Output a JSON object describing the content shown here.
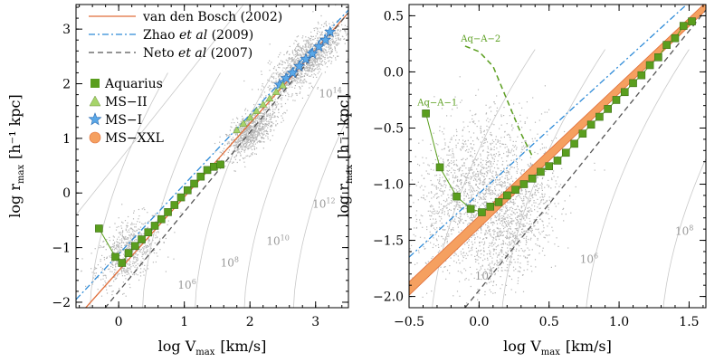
{
  "chart_data": [
    {
      "type": "line",
      "xlabel": "log V",
      "xlabel_sub": "max",
      "xlabel_unit": "[km/s]",
      "ylabel": "log r",
      "ylabel_sub": "max",
      "ylabel_unit": "[h⁻¹ kpc]",
      "xlim": [
        -0.65,
        3.5
      ],
      "ylim": [
        -2.1,
        3.45
      ],
      "xticks": [
        0,
        1,
        2,
        3
      ],
      "xtick_labels": [
        "0",
        "1",
        "2",
        "3"
      ],
      "yticks": [
        -2,
        -1,
        0,
        1,
        2,
        3
      ],
      "ytick_labels": [
        "−2",
        "−1",
        "0",
        "1",
        "2",
        "3"
      ],
      "grid": false,
      "legend_position": "top-left",
      "legend_lines": [
        {
          "label": "van den Bosch (2002)",
          "color": "#e06e3a",
          "style": "solid"
        },
        {
          "label": "Zhao et al (2009)",
          "label_parts": [
            "Zhao ",
            "et al",
            " (2009)"
          ],
          "color": "#2e8bd8",
          "style": "dashdot"
        },
        {
          "label": "Neto et al (2007)",
          "label_parts": [
            "Neto ",
            "et al",
            " (2007)"
          ],
          "color": "#555555",
          "style": "dashed"
        }
      ],
      "legend_markers": [
        {
          "label": "Aquarius",
          "marker": "square",
          "color": "#5a9e1e"
        },
        {
          "label": "MS−II",
          "marker": "triangle",
          "color": "#a6d46a"
        },
        {
          "label": "MS−I",
          "marker": "star",
          "color": "#5aa8e8"
        },
        {
          "label": "MS−XXL",
          "marker": "circle",
          "color": "#f5a060"
        }
      ],
      "relations": [
        {
          "name": "van den Bosch (2002)",
          "x": [
            -0.65,
            3.5
          ],
          "y": [
            -2.3,
            3.3
          ]
        },
        {
          "name": "Zhao et al (2009)",
          "x": [
            -0.65,
            3.5
          ],
          "y": [
            -1.95,
            3.35
          ]
        },
        {
          "name": "Neto et al (2007)",
          "x": [
            -0.65,
            3.5
          ],
          "y": [
            -2.75,
            3.3
          ]
        }
      ],
      "series": [
        {
          "name": "Aquarius",
          "x": [
            -0.3,
            -0.05,
            0.05,
            0.15,
            0.25,
            0.35,
            0.45,
            0.55,
            0.65,
            0.75,
            0.85,
            0.95,
            1.05,
            1.15,
            1.25,
            1.35,
            1.45,
            1.55
          ],
          "y": [
            -0.65,
            -1.17,
            -1.28,
            -1.1,
            -0.97,
            -0.85,
            -0.72,
            -0.6,
            -0.48,
            -0.35,
            -0.22,
            -0.08,
            0.05,
            0.17,
            0.3,
            0.42,
            0.48,
            0.52
          ]
        },
        {
          "name": "MS−I",
          "x": [
            2.45,
            2.55,
            2.65,
            2.75,
            2.85,
            2.95,
            3.05,
            3.15,
            3.22
          ],
          "y": [
            1.98,
            2.1,
            2.2,
            2.32,
            2.45,
            2.55,
            2.68,
            2.8,
            2.95
          ]
        },
        {
          "name": "MS−II",
          "x": [
            1.8,
            1.9,
            2.0,
            2.1,
            2.2,
            2.3,
            2.4,
            2.5
          ],
          "y": [
            1.15,
            1.27,
            1.38,
            1.5,
            1.62,
            1.73,
            1.85,
            1.97
          ]
        }
      ],
      "contour_labels": [
        {
          "text": "10",
          "exp": "6",
          "x": 0.9,
          "y": -1.75
        },
        {
          "text": "10",
          "exp": "8",
          "x": 1.55,
          "y": -1.35
        },
        {
          "text": "10",
          "exp": "10",
          "x": 2.25,
          "y": -0.95
        },
        {
          "text": "10",
          "exp": "12",
          "x": 2.95,
          "y": -0.27
        },
        {
          "text": "10",
          "exp": "14",
          "x": 3.05,
          "y": 1.75
        }
      ],
      "colors": {
        "scatter": "#b5b5b5",
        "contour": "#c8c8c8",
        "label": "#9a9a9a"
      }
    },
    {
      "type": "line",
      "xlabel": "log V",
      "xlabel_sub": "max",
      "xlabel_unit": "[km/s]",
      "ylabel": "log r",
      "ylabel_sub": "max",
      "ylabel_unit": "[h⁻¹ kpc]",
      "xlim": [
        -0.5,
        1.62
      ],
      "ylim": [
        -2.1,
        0.6
      ],
      "xticks": [
        -0.5,
        0.0,
        0.5,
        1.0,
        1.5
      ],
      "xtick_labels": [
        "−0.5",
        "0.0",
        "0.5",
        "1.0",
        "1.5"
      ],
      "yticks": [
        -2.0,
        -1.5,
        -1.0,
        -0.5,
        0.0,
        0.5
      ],
      "ytick_labels": [
        "−2.0",
        "−1.5",
        "−1.0",
        "−0.5",
        "0.0",
        "0.5"
      ],
      "grid": false,
      "relations": [
        {
          "name": "Zhao et al (2009)",
          "x": [
            -0.5,
            1.5
          ],
          "y": [
            -1.65,
            0.62
          ]
        },
        {
          "name": "Neto et al (2007)",
          "x": [
            -0.1,
            1.62
          ],
          "y": [
            -2.1,
            0.55
          ]
        }
      ],
      "band": {
        "x": [
          -0.5,
          1.62
        ],
        "y_low": [
          -1.99,
          0.55
        ],
        "y_high": [
          -1.87,
          0.62
        ]
      },
      "series": [
        {
          "name": "Aq-A-1",
          "x": [
            -0.38,
            -0.28,
            -0.16,
            -0.06,
            0.02,
            0.08,
            0.14,
            0.2,
            0.26,
            0.32,
            0.38,
            0.44,
            0.5,
            0.56,
            0.62,
            0.68,
            0.74,
            0.8,
            0.86,
            0.92,
            0.98,
            1.04,
            1.1,
            1.16,
            1.22,
            1.28,
            1.34,
            1.4,
            1.46,
            1.52
          ],
          "y": [
            -0.37,
            -0.85,
            -1.11,
            -1.22,
            -1.25,
            -1.2,
            -1.16,
            -1.1,
            -1.05,
            -1.0,
            -0.95,
            -0.89,
            -0.84,
            -0.79,
            -0.72,
            -0.64,
            -0.55,
            -0.47,
            -0.4,
            -0.33,
            -0.25,
            -0.18,
            -0.1,
            -0.03,
            0.06,
            0.13,
            0.24,
            0.3,
            0.41,
            0.45
          ]
        },
        {
          "name": "Aq-A-2",
          "x": [
            -0.1,
            0.0,
            0.1,
            0.2,
            0.3,
            0.38
          ],
          "y": [
            0.23,
            0.18,
            0.05,
            -0.25,
            -0.55,
            -0.75
          ]
        }
      ],
      "annotations": [
        {
          "text": "Aq−A−2",
          "x": -0.13,
          "y": 0.27
        },
        {
          "text": "Aq−A−1",
          "x": -0.44,
          "y": -0.3
        }
      ],
      "contour_labels": [
        {
          "text": "10",
          "exp": "4",
          "x": -0.03,
          "y": -1.85
        },
        {
          "text": "10",
          "exp": "6",
          "x": 0.72,
          "y": -1.7
        },
        {
          "text": "10",
          "exp": "8",
          "x": 1.4,
          "y": -1.45
        }
      ],
      "colors": {
        "scatter": "#b5b5b5",
        "contour": "#c8c8c8",
        "band": "#f5a060",
        "band_edge": "#e06e3a",
        "label": "#9a9a9a"
      }
    }
  ]
}
